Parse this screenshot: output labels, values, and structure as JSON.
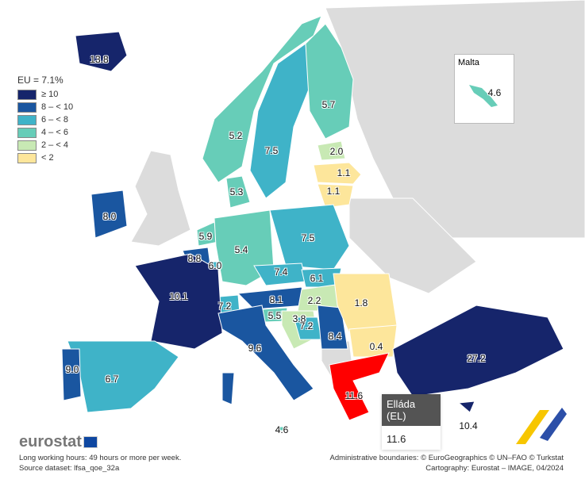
{
  "legend": {
    "title": "EU = 7.1%",
    "classes": [
      {
        "label": "≥ 10",
        "color": "#16256b"
      },
      {
        "label": "8 – < 10",
        "color": "#1a56a0"
      },
      {
        "label": "6 – < 8",
        "color": "#3fb3c8"
      },
      {
        "label": "4 – < 6",
        "color": "#67cdb8"
      },
      {
        "label": "2 – < 4",
        "color": "#c8e9b4"
      },
      {
        "label": "< 2",
        "color": "#fde69b"
      }
    ]
  },
  "highlight_color": "#ff0000",
  "nodata_color": "#dcdcdc",
  "countries": {
    "IS": "13.8",
    "NO": "5.2",
    "SE": "7.5",
    "FI": "5.7",
    "EE": "2.0",
    "LV": "1.1",
    "LT": "1.1",
    "DK": "5.3",
    "IE": "8.0",
    "NL": "5.9",
    "BE": "8.8",
    "LU": "6.0",
    "DE": "5.4",
    "PL": "7.5",
    "CZ": "7.4",
    "SK": "6.1",
    "AT": "8.1",
    "HU": "2.2",
    "CH": "7.2",
    "SI": "5.5",
    "HR": "3.8",
    "BA": "7.2",
    "RS": "8.4",
    "RO": "1.8",
    "BG": "0.4",
    "EL": "11.6",
    "TR": "27.2",
    "CY": "10.4",
    "FR": "10.1",
    "IT": "9.6",
    "MT": "4.6",
    "ES": "6.7",
    "PT": "9.0"
  },
  "malta_inset": {
    "title": "Malta",
    "value": "4.6"
  },
  "tooltip": {
    "name": "Elláda (EL)",
    "value": "11.6"
  },
  "footer": {
    "logo": "eurostat",
    "note": "Long working hours: 49 hours or more per week.",
    "source": "Source dataset: lfsa_qoe_32a",
    "boundaries": "Administrative boundaries: © EuroGeographics © UN–FAO © Turkstat",
    "cartography": "Cartography: Eurostat – IMAGE, 04/2024"
  }
}
